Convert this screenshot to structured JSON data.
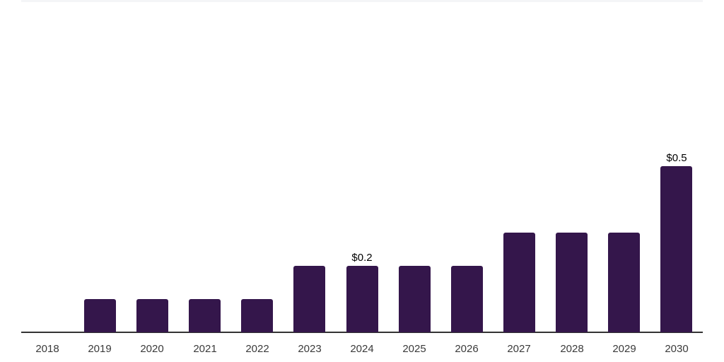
{
  "chart_data": {
    "type": "bar",
    "title": "",
    "xlabel": "",
    "ylabel": "",
    "categories": [
      "2018",
      "2019",
      "2020",
      "2021",
      "2022",
      "2023",
      "2024",
      "2025",
      "2026",
      "2027",
      "2028",
      "2029",
      "2030"
    ],
    "values": [
      0,
      0.1,
      0.1,
      0.1,
      0.1,
      0.2,
      0.2,
      0.2,
      0.2,
      0.3,
      0.3,
      0.3,
      0.5
    ],
    "bar_labels": [
      "",
      "",
      "",
      "",
      "",
      "",
      "$0.2",
      "",
      "",
      "",
      "",
      "",
      "$0.5"
    ],
    "ylim": [
      0,
      1.0
    ],
    "grid": false,
    "legend": "none",
    "value_prefix": "$",
    "colors": {
      "bar": "#34164B",
      "axis": "#333333",
      "tick_label": "#3a3a3a",
      "data_label": "#000000",
      "top_divider": "#f4f5f7",
      "background": "#ffffff"
    }
  }
}
